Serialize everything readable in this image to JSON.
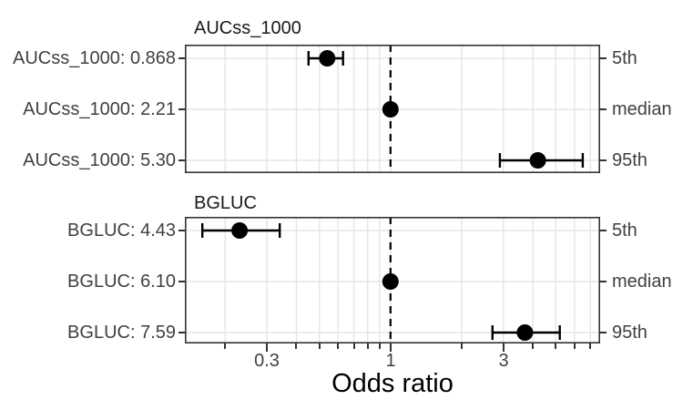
{
  "figure": {
    "x_axis_title": "Odds ratio"
  },
  "chart_data": {
    "type": "scatter",
    "subtype": "forest-plot-with-error-bars",
    "xlabel": "Odds ratio",
    "x_scale": "log10",
    "x_domain": [
      0.135,
      7.7
    ],
    "x_major_ticks": [
      {
        "value": 0.3,
        "label": "0.3"
      },
      {
        "value": 1,
        "label": "1"
      },
      {
        "value": 3,
        "label": "3"
      }
    ],
    "x_minor_ticks": [
      0.2,
      0.4,
      0.5,
      0.6,
      0.7,
      0.8,
      0.9,
      2,
      4,
      5,
      6,
      7
    ],
    "gridlines_x": [
      0.2,
      0.3,
      0.4,
      0.5,
      0.6,
      0.7,
      0.8,
      0.9,
      1,
      2,
      3,
      4,
      5,
      6,
      7
    ],
    "reference_line_x": 1,
    "grid": true,
    "panels": [
      {
        "title": "AUCss_1000",
        "rows": [
          {
            "label": "AUCss_1000: 0.868",
            "percentile": "5th",
            "odds_ratio": 0.54,
            "ci_low": 0.45,
            "ci_high": 0.63
          },
          {
            "label": "AUCss_1000: 2.21",
            "percentile": "median",
            "odds_ratio": 1.0,
            "ci_low": 1.0,
            "ci_high": 1.0
          },
          {
            "label": "AUCss_1000: 5.30",
            "percentile": "95th",
            "odds_ratio": 4.2,
            "ci_low": 2.9,
            "ci_high": 6.5
          }
        ]
      },
      {
        "title": "BGLUC",
        "rows": [
          {
            "label": "BGLUC: 4.43",
            "percentile": "5th",
            "odds_ratio": 0.23,
            "ci_low": 0.16,
            "ci_high": 0.34
          },
          {
            "label": "BGLUC: 6.10",
            "percentile": "median",
            "odds_ratio": 1.0,
            "ci_low": 1.0,
            "ci_high": 1.0
          },
          {
            "label": "BGLUC: 7.59",
            "percentile": "95th",
            "odds_ratio": 3.7,
            "ci_low": 2.7,
            "ci_high": 5.2
          }
        ]
      }
    ]
  },
  "colors": {
    "point": "#000000",
    "error_bar": "#000000",
    "reference_line": "#000000",
    "grid": "#E5E5E5",
    "panel_border": "#333333",
    "axis_text": "#404040",
    "title_text": "#1A1A1A",
    "background": "#FFFFFF"
  }
}
